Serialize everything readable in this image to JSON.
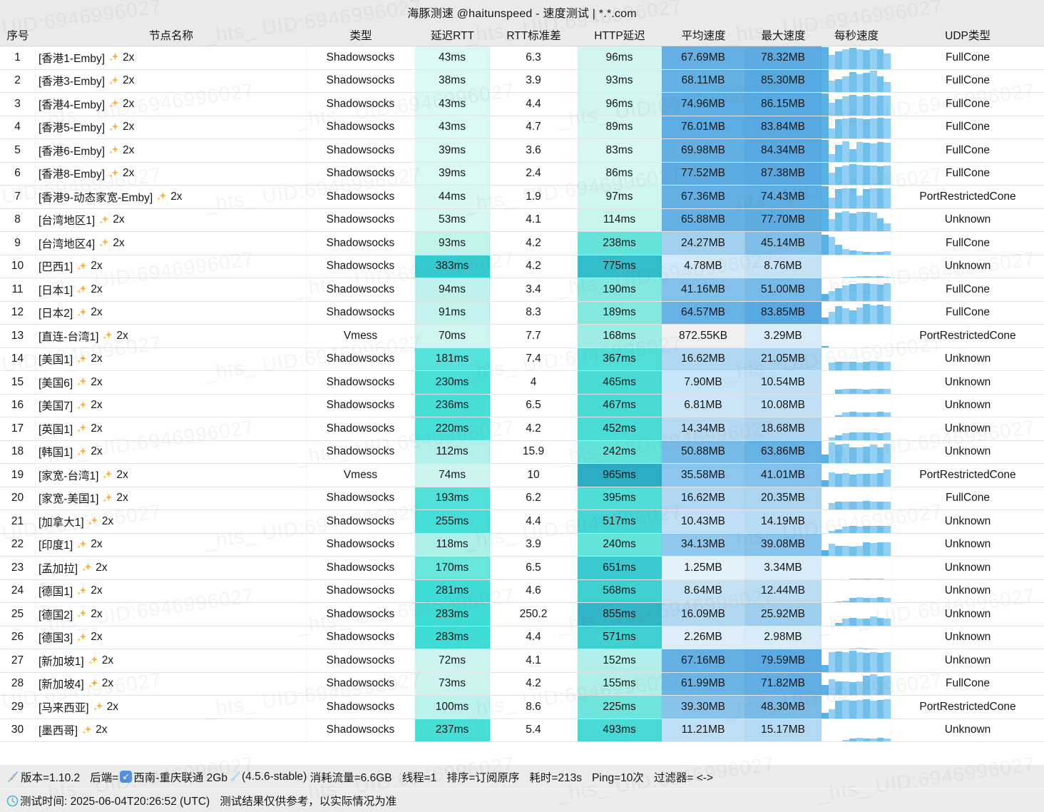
{
  "title": "海豚测速 @haitunspeed - 速度测试 | *.*.com",
  "watermark_text": "_hts_ UID:6946996027",
  "columns": [
    "序号",
    "节点名称",
    "类型",
    "延迟RTT",
    "RTT标准差",
    "HTTP延迟",
    "平均速度",
    "最大速度",
    "每秒速度",
    "UDP类型"
  ],
  "colors": {
    "accent_blue": "#5aabe2",
    "accent_turquoise": "#45ded8",
    "bar_dark": "#58b1e5",
    "bar_mid": "#6fc0ea",
    "bar_light": "#93cff2",
    "kb_speed_bg": "#f0f0f0"
  },
  "rows": [
    {
      "no": "1",
      "name": "[香港1-Emby]",
      "mult": "2x",
      "type": "Shadowsocks",
      "rtt": "43ms",
      "std": "6.3",
      "http": "96ms",
      "avg": "67.69MB",
      "max": "78.32MB",
      "udp": "FullCone",
      "bars": [
        100,
        62,
        80,
        90,
        95,
        88,
        86,
        92,
        90,
        68
      ]
    },
    {
      "no": "2",
      "name": "[香港3-Emby]",
      "mult": "2x",
      "type": "Shadowsocks",
      "rtt": "38ms",
      "std": "3.9",
      "http": "93ms",
      "avg": "68.11MB",
      "max": "85.30MB",
      "udp": "FullCone",
      "bars": [
        100,
        52,
        58,
        72,
        90,
        82,
        86,
        96,
        72,
        45
      ]
    },
    {
      "no": "3",
      "name": "[香港4-Emby]",
      "mult": "2x",
      "type": "Shadowsocks",
      "rtt": "43ms",
      "std": "4.4",
      "http": "96ms",
      "avg": "74.96MB",
      "max": "86.15MB",
      "udp": "FullCone",
      "bars": [
        100,
        58,
        72,
        86,
        92,
        86,
        92,
        84,
        88,
        90
      ]
    },
    {
      "no": "4",
      "name": "[香港5-Emby]",
      "mult": "2x",
      "type": "Shadowsocks",
      "rtt": "43ms",
      "std": "4.7",
      "http": "89ms",
      "avg": "76.01MB",
      "max": "83.84MB",
      "udp": "FullCone",
      "bars": [
        100,
        45,
        88,
        90,
        92,
        90,
        88,
        90,
        92,
        90
      ]
    },
    {
      "no": "5",
      "name": "[香港6-Emby]",
      "mult": "2x",
      "type": "Shadowsocks",
      "rtt": "39ms",
      "std": "3.6",
      "http": "83ms",
      "avg": "69.98MB",
      "max": "84.34MB",
      "udp": "FullCone",
      "bars": [
        100,
        35,
        75,
        92,
        58,
        88,
        86,
        82,
        88,
        86
      ]
    },
    {
      "no": "6",
      "name": "[香港8-Emby]",
      "mult": "2x",
      "type": "Shadowsocks",
      "rtt": "39ms",
      "std": "2.4",
      "http": "86ms",
      "avg": "77.52MB",
      "max": "87.38MB",
      "udp": "FullCone",
      "bars": [
        100,
        55,
        80,
        88,
        92,
        90,
        86,
        88,
        84,
        88
      ]
    },
    {
      "no": "7",
      "name": "[香港9-动态家宽-Emby]",
      "mult": "2x",
      "type": "Shadowsocks",
      "rtt": "44ms",
      "std": "1.9",
      "http": "97ms",
      "avg": "67.36MB",
      "max": "74.43MB",
      "udp": "PortRestrictedCone",
      "bars": [
        100,
        48,
        85,
        90,
        88,
        55,
        85,
        88,
        90,
        88
      ]
    },
    {
      "no": "8",
      "name": "[台湾地区1]",
      "mult": "2x",
      "type": "Shadowsocks",
      "rtt": "53ms",
      "std": "4.1",
      "http": "114ms",
      "avg": "65.88MB",
      "max": "77.70MB",
      "udp": "Unknown",
      "bars": [
        100,
        55,
        85,
        90,
        80,
        86,
        88,
        85,
        58,
        35
      ]
    },
    {
      "no": "9",
      "name": "[台湾地区4]",
      "mult": "2x",
      "type": "Shadowsocks",
      "rtt": "93ms",
      "std": "4.2",
      "http": "238ms",
      "avg": "24.27MB",
      "max": "45.14MB",
      "udp": "FullCone",
      "bars": [
        88,
        80,
        45,
        25,
        18,
        15,
        12,
        10,
        12,
        15
      ]
    },
    {
      "no": "10",
      "name": "[巴西1]",
      "mult": "2x",
      "type": "Shadowsocks",
      "rtt": "383ms",
      "std": "4.2",
      "http": "775ms",
      "avg": "4.78MB",
      "max": "8.76MB",
      "udp": "Unknown",
      "bars": [
        0,
        0,
        0,
        3,
        4,
        5,
        6,
        7,
        5,
        3
      ]
    },
    {
      "no": "11",
      "name": "[日本1]",
      "mult": "2x",
      "type": "Shadowsocks",
      "rtt": "94ms",
      "std": "3.4",
      "http": "190ms",
      "avg": "41.16MB",
      "max": "51.00MB",
      "udp": "FullCone",
      "bars": [
        30,
        45,
        55,
        70,
        76,
        80,
        78,
        75,
        72,
        80
      ]
    },
    {
      "no": "12",
      "name": "[日本2]",
      "mult": "2x",
      "type": "Shadowsocks",
      "rtt": "91ms",
      "std": "8.3",
      "http": "189ms",
      "avg": "64.57MB",
      "max": "83.85MB",
      "udp": "FullCone",
      "bars": [
        30,
        55,
        80,
        70,
        60,
        75,
        90,
        85,
        88,
        80
      ]
    },
    {
      "no": "13",
      "name": "[直连-台湾1]",
      "mult": "2x",
      "type": "Vmess",
      "rtt": "70ms",
      "std": "7.7",
      "http": "168ms",
      "avg": "872.55KB",
      "max": "3.29MB",
      "udp": "PortRestrictedCone",
      "bars": [
        4,
        0,
        0,
        0,
        0,
        0,
        0,
        0,
        0,
        0
      ]
    },
    {
      "no": "14",
      "name": "[美国1]",
      "mult": "2x",
      "type": "Shadowsocks",
      "rtt": "181ms",
      "std": "7.4",
      "http": "367ms",
      "avg": "16.62MB",
      "max": "21.05MB",
      "udp": "Unknown",
      "bars": [
        0,
        36,
        38,
        40,
        38,
        36,
        40,
        42,
        40,
        38
      ]
    },
    {
      "no": "15",
      "name": "[美国6]",
      "mult": "2x",
      "type": "Shadowsocks",
      "rtt": "230ms",
      "std": "4",
      "http": "465ms",
      "avg": "7.90MB",
      "max": "10.54MB",
      "udp": "Unknown",
      "bars": [
        0,
        0,
        18,
        20,
        22,
        20,
        18,
        20,
        22,
        20
      ]
    },
    {
      "no": "16",
      "name": "[美国7]",
      "mult": "2x",
      "type": "Shadowsocks",
      "rtt": "236ms",
      "std": "6.5",
      "http": "467ms",
      "avg": "6.81MB",
      "max": "10.08MB",
      "udp": "Unknown",
      "bars": [
        0,
        0,
        6,
        18,
        22,
        20,
        18,
        20,
        22,
        18
      ]
    },
    {
      "no": "17",
      "name": "[英国1]",
      "mult": "2x",
      "type": "Shadowsocks",
      "rtt": "220ms",
      "std": "4.2",
      "http": "452ms",
      "avg": "14.34MB",
      "max": "18.68MB",
      "udp": "Unknown",
      "bars": [
        0,
        12,
        20,
        32,
        35,
        33,
        35,
        33,
        32,
        33
      ]
    },
    {
      "no": "18",
      "name": "[韩国1]",
      "mult": "2x",
      "type": "Shadowsocks",
      "rtt": "112ms",
      "std": "15.9",
      "http": "242ms",
      "avg": "50.88MB",
      "max": "63.86MB",
      "udp": "Unknown",
      "bars": [
        38,
        92,
        85,
        88,
        70,
        72,
        75,
        85,
        72,
        88
      ]
    },
    {
      "no": "19",
      "name": "[家宽-台湾1]",
      "mult": "2x",
      "type": "Vmess",
      "rtt": "74ms",
      "std": "10",
      "http": "965ms",
      "avg": "35.58MB",
      "max": "41.01MB",
      "udp": "PortRestrictedCone",
      "bars": [
        28,
        62,
        55,
        60,
        52,
        55,
        58,
        55,
        60,
        75
      ]
    },
    {
      "no": "20",
      "name": "[家宽-美国1]",
      "mult": "2x",
      "type": "Shadowsocks",
      "rtt": "193ms",
      "std": "6.2",
      "http": "395ms",
      "avg": "16.62MB",
      "max": "20.35MB",
      "udp": "FullCone",
      "bars": [
        0,
        30,
        35,
        36,
        35,
        36,
        38,
        36,
        35,
        36
      ]
    },
    {
      "no": "21",
      "name": "[加拿大1]",
      "mult": "2x",
      "type": "Shadowsocks",
      "rtt": "255ms",
      "std": "4.4",
      "http": "517ms",
      "avg": "10.43MB",
      "max": "14.19MB",
      "udp": "Unknown",
      "bars": [
        0,
        8,
        15,
        28,
        30,
        28,
        30,
        32,
        30,
        30
      ]
    },
    {
      "no": "22",
      "name": "[印度1]",
      "mult": "2x",
      "type": "Shadowsocks",
      "rtt": "118ms",
      "std": "3.9",
      "http": "240ms",
      "avg": "34.13MB",
      "max": "39.08MB",
      "udp": "Unknown",
      "bars": [
        25,
        55,
        45,
        45,
        42,
        45,
        60,
        58,
        60,
        62
      ]
    },
    {
      "no": "23",
      "name": "[孟加拉]",
      "mult": "2x",
      "type": "Shadowsocks",
      "rtt": "170ms",
      "std": "6.5",
      "http": "651ms",
      "avg": "1.25MB",
      "max": "3.34MB",
      "udp": "Unknown",
      "bars": [
        0,
        0,
        0,
        0,
        2,
        3,
        2,
        2,
        1,
        0
      ]
    },
    {
      "no": "24",
      "name": "[德国1]",
      "mult": "2x",
      "type": "Shadowsocks",
      "rtt": "281ms",
      "std": "4.6",
      "http": "568ms",
      "avg": "8.64MB",
      "max": "12.44MB",
      "udp": "Unknown",
      "bars": [
        0,
        0,
        2,
        8,
        18,
        22,
        20,
        18,
        22,
        20
      ]
    },
    {
      "no": "25",
      "name": "[德国2]",
      "mult": "2x",
      "type": "Shadowsocks",
      "rtt": "283ms",
      "std": "250.2",
      "http": "855ms",
      "avg": "16.09MB",
      "max": "25.92MB",
      "udp": "Unknown",
      "bars": [
        0,
        0,
        12,
        30,
        35,
        32,
        30,
        40,
        35,
        30
      ]
    },
    {
      "no": "26",
      "name": "[德国3]",
      "mult": "2x",
      "type": "Shadowsocks",
      "rtt": "283ms",
      "std": "4.4",
      "http": "571ms",
      "avg": "2.26MB",
      "max": "2.98MB",
      "udp": "Unknown",
      "bars": [
        0,
        0,
        0,
        0,
        1,
        2,
        1,
        1,
        0,
        0
      ]
    },
    {
      "no": "27",
      "name": "[新加坡1]",
      "mult": "2x",
      "type": "Shadowsocks",
      "rtt": "72ms",
      "std": "4.1",
      "http": "152ms",
      "avg": "67.16MB",
      "max": "79.59MB",
      "udp": "Unknown",
      "bars": [
        30,
        88,
        92,
        90,
        95,
        88,
        85,
        90,
        85,
        88
      ]
    },
    {
      "no": "28",
      "name": "[新加坡4]",
      "mult": "2x",
      "type": "Shadowsocks",
      "rtt": "73ms",
      "std": "4.2",
      "http": "155ms",
      "avg": "61.99MB",
      "max": "71.82MB",
      "udp": "FullCone",
      "bars": [
        45,
        70,
        60,
        62,
        58,
        62,
        88,
        92,
        85,
        88
      ]
    },
    {
      "no": "29",
      "name": "[马来西亚]",
      "mult": "2x",
      "type": "Shadowsocks",
      "rtt": "100ms",
      "std": "8.6",
      "http": "225ms",
      "avg": "39.30MB",
      "max": "48.30MB",
      "udp": "PortRestrictedCone",
      "bars": [
        25,
        40,
        78,
        82,
        80,
        82,
        85,
        80,
        82,
        85
      ]
    },
    {
      "no": "30",
      "name": "[墨西哥]",
      "mult": "2x",
      "type": "Shadowsocks",
      "rtt": "237ms",
      "std": "5.4",
      "http": "493ms",
      "avg": "11.21MB",
      "max": "15.17MB",
      "udp": "Unknown",
      "bars": [
        0,
        0,
        0,
        5,
        12,
        15,
        14,
        13,
        15,
        12
      ]
    }
  ],
  "status": {
    "version": "版本=1.10.2",
    "backend_label": "后端=",
    "backend_name": "西南-重庆联通 2Gb",
    "backend_version": "(4.5.6-stable)",
    "traffic": "消耗流量=6.6GB",
    "threads": "线程=1",
    "sort": "排序=订阅原序",
    "elapsed": "耗时=213s",
    "ping": "Ping=10次",
    "filter": "过滤器= <->",
    "time": "测试时间: 2025-06-04T20:26:52 (UTC)",
    "disclaimer": "测试结果仅供参考，以实际情况为准"
  }
}
